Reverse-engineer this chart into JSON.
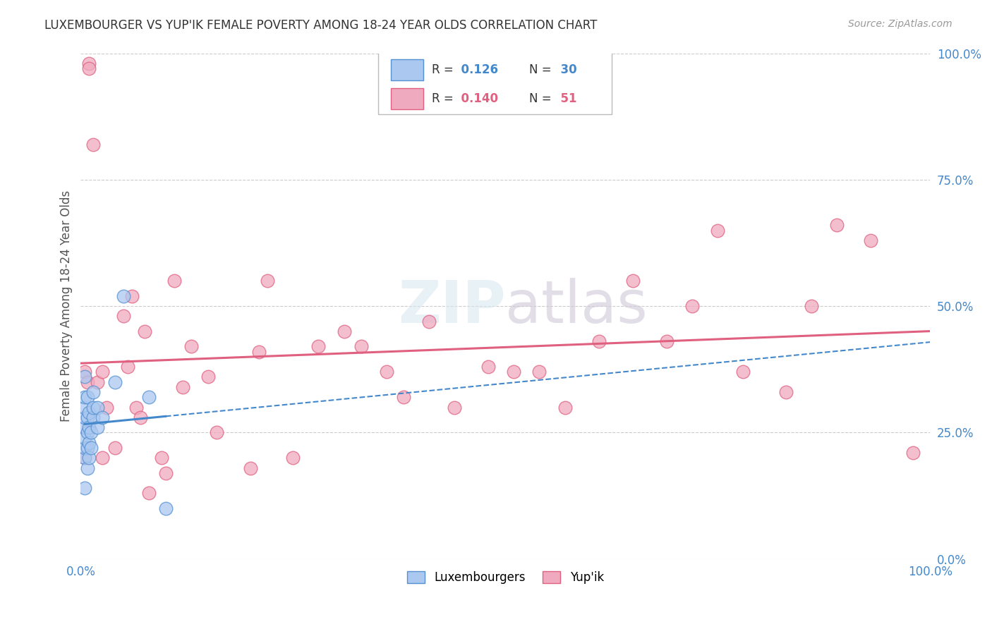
{
  "title": "LUXEMBOURGER VS YUP'IK FEMALE POVERTY AMONG 18-24 YEAR OLDS CORRELATION CHART",
  "source": "Source: ZipAtlas.com",
  "ylabel": "Female Poverty Among 18-24 Year Olds",
  "xlim": [
    0,
    1
  ],
  "ylim": [
    0,
    1
  ],
  "ytick_positions": [
    0,
    0.25,
    0.5,
    0.75,
    1.0
  ],
  "grid_color": "#cccccc",
  "background_color": "#ffffff",
  "watermark": "ZIPatlas",
  "luxembourger_color": "#aac8f0",
  "yupik_color": "#f0aac0",
  "luxembourger_edge_color": "#5590d0",
  "yupik_edge_color": "#e06080",
  "luxembourger_line_color": "#4488cc",
  "yupik_line_color": "#e06080",
  "luxembourger_label": "Luxembourgers",
  "yupik_label": "Yup'ik",
  "legend_r1": "0.126",
  "legend_n1": "30",
  "legend_r2": "0.140",
  "legend_n2": "51",
  "lux_x": [
    0.005,
    0.005,
    0.005,
    0.005,
    0.005,
    0.005,
    0.005,
    0.005,
    0.005,
    0.008,
    0.008,
    0.008,
    0.008,
    0.008,
    0.01,
    0.01,
    0.01,
    0.01,
    0.012,
    0.012,
    0.015,
    0.015,
    0.015,
    0.02,
    0.02,
    0.025,
    0.04,
    0.05,
    0.08,
    0.1
  ],
  "lux_y": [
    0.2,
    0.22,
    0.24,
    0.26,
    0.28,
    0.3,
    0.32,
    0.14,
    0.36,
    0.18,
    0.22,
    0.25,
    0.28,
    0.32,
    0.2,
    0.23,
    0.26,
    0.29,
    0.22,
    0.25,
    0.28,
    0.3,
    0.33,
    0.26,
    0.3,
    0.28,
    0.35,
    0.52,
    0.32,
    0.1
  ],
  "yupik_x": [
    0.005,
    0.005,
    0.008,
    0.01,
    0.01,
    0.015,
    0.02,
    0.025,
    0.025,
    0.03,
    0.04,
    0.05,
    0.055,
    0.06,
    0.065,
    0.07,
    0.075,
    0.08,
    0.095,
    0.1,
    0.11,
    0.12,
    0.13,
    0.15,
    0.16,
    0.2,
    0.21,
    0.22,
    0.25,
    0.28,
    0.31,
    0.33,
    0.36,
    0.38,
    0.41,
    0.44,
    0.48,
    0.51,
    0.54,
    0.57,
    0.61,
    0.65,
    0.69,
    0.72,
    0.75,
    0.78,
    0.83,
    0.86,
    0.89,
    0.93,
    0.98
  ],
  "yupik_y": [
    0.37,
    0.2,
    0.35,
    0.98,
    0.97,
    0.82,
    0.35,
    0.2,
    0.37,
    0.3,
    0.22,
    0.48,
    0.38,
    0.52,
    0.3,
    0.28,
    0.45,
    0.13,
    0.2,
    0.17,
    0.55,
    0.34,
    0.42,
    0.36,
    0.25,
    0.18,
    0.41,
    0.55,
    0.2,
    0.42,
    0.45,
    0.42,
    0.37,
    0.32,
    0.47,
    0.3,
    0.38,
    0.37,
    0.37,
    0.3,
    0.43,
    0.55,
    0.43,
    0.5,
    0.65,
    0.37,
    0.33,
    0.5,
    0.66,
    0.63,
    0.21
  ]
}
